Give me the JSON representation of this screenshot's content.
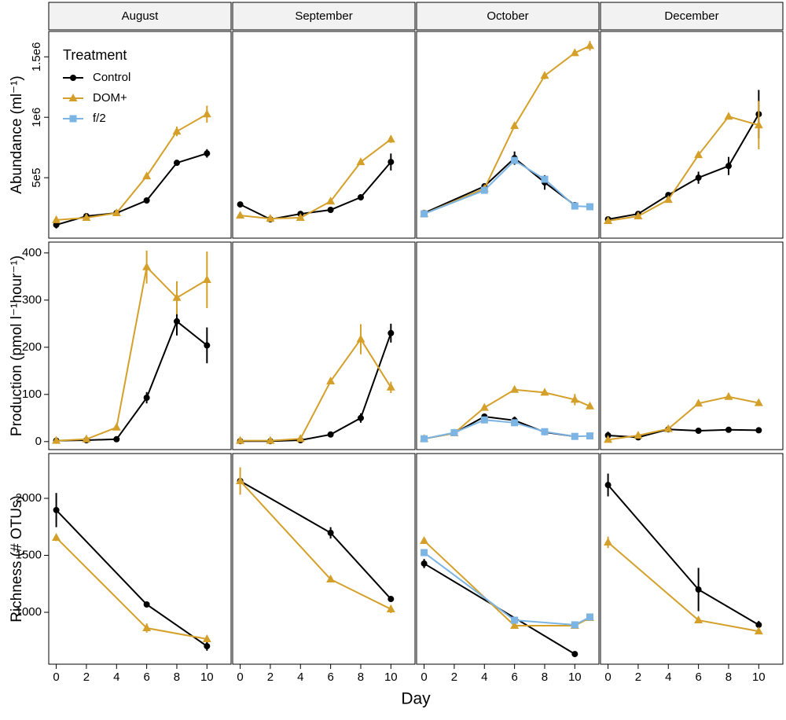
{
  "chart_data": {
    "type": "line",
    "xlabel": "Day",
    "columns": [
      "August",
      "September",
      "October",
      "December"
    ],
    "xlim": [
      -0.5,
      11.6
    ],
    "xticks": [
      0,
      2,
      4,
      6,
      8,
      10
    ],
    "legend": {
      "title": "Treatment",
      "position": "top-left"
    },
    "series": [
      {
        "name": "Control",
        "color": "#000000",
        "marker": "circle"
      },
      {
        "name": "DOM+",
        "color": "#D4A02A",
        "marker": "triangle"
      },
      {
        "name": "f/2",
        "color": "#7CB4E4",
        "marker": "square"
      }
    ],
    "rows": [
      {
        "ylabel": "Abundance (ml⁻¹)",
        "ylim": [
          0,
          1710000
        ],
        "ytick_label_angle": -90,
        "yticks": [
          {
            "value": 500000,
            "label": "5e5"
          },
          {
            "value": 1000000,
            "label": "1e6"
          },
          {
            "value": 1500000,
            "label": "1.5e6"
          }
        ],
        "panels": [
          {
            "series": [
              {
                "name": "Control",
                "x": [
                  0,
                  2,
                  4,
                  6,
                  8,
                  10
                ],
                "values": [
                  110000,
                  182000,
                  208000,
                  312000,
                  623000,
                  701000
                ],
                "errors": [
                  30000,
                  10000,
                  10000,
                  15000,
                  15000,
                  35000
                ]
              },
              {
                "name": "DOM+",
                "x": [
                  0,
                  2,
                  4,
                  6,
                  8,
                  10
                ],
                "values": [
                  150000,
                  169000,
                  208000,
                  513000,
                  883000,
                  1026000
                ],
                "errors": [
                  10000,
                  10000,
                  10000,
                  15000,
                  40000,
                  70000
                ]
              }
            ]
          },
          {
            "series": [
              {
                "name": "Control",
                "x": [
                  0,
                  2,
                  4,
                  6,
                  8,
                  10
                ],
                "values": [
                  279000,
                  156000,
                  201000,
                  234000,
                  338000,
                  630000
                ],
                "errors": [
                  10000,
                  10000,
                  10000,
                  10000,
                  25000,
                  70000
                ]
              },
              {
                "name": "DOM+",
                "x": [
                  0,
                  2,
                  4,
                  6,
                  8,
                  10
                ],
                "values": [
                  188000,
                  162000,
                  169000,
                  305000,
                  630000,
                  818000
                ],
                "errors": [
                  25000,
                  10000,
                  15000,
                  15000,
                  15000,
                  30000
                ]
              }
            ]
          },
          {
            "series": [
              {
                "name": "Control",
                "x": [
                  0,
                  4,
                  6,
                  8,
                  10
                ],
                "values": [
                  208000,
                  429000,
                  662000,
                  461000,
                  273000
                ],
                "errors": [
                  10000,
                  10000,
                  55000,
                  60000,
                  10000
                ]
              },
              {
                "name": "DOM+",
                "x": [
                  0,
                  4,
                  6,
                  8,
                  10,
                  11
                ],
                "values": [
                  201000,
                  409000,
                  929000,
                  1344000,
                  1532000,
                  1591000
                ],
                "errors": [
                  10000,
                  10000,
                  20000,
                  30000,
                  25000,
                  40000
                ]
              },
              {
                "name": "f/2",
                "x": [
                  0,
                  4,
                  6,
                  8,
                  10,
                  11
                ],
                "values": [
                  201000,
                  396000,
                  643000,
                  487000,
                  266000,
                  260000
                ],
                "errors": [
                  10000,
                  10000,
                  20000,
                  20000,
                  10000,
                  10000
                ]
              }
            ]
          },
          {
            "series": [
              {
                "name": "Control",
                "x": [
                  0,
                  2,
                  4,
                  6,
                  8,
                  10
                ],
                "values": [
                  156000,
                  201000,
                  357000,
                  500000,
                  597000,
                  1026000
                ],
                "errors": [
                  10000,
                  10000,
                  20000,
                  50000,
                  75000,
                  200000
                ]
              },
              {
                "name": "DOM+",
                "x": [
                  0,
                  2,
                  4,
                  6,
                  8,
                  10
                ],
                "values": [
                  143000,
                  182000,
                  318000,
                  688000,
                  1006000,
                  935000
                ],
                "errors": [
                  10000,
                  10000,
                  10000,
                  10000,
                  10000,
                  200000
                ]
              }
            ]
          }
        ]
      },
      {
        "ylabel": "Production (pmol l⁻¹hour⁻¹)",
        "ylim": [
          -17,
          423
        ],
        "yticks": [
          0,
          100,
          200,
          300,
          400
        ],
        "panels": [
          {
            "series": [
              {
                "name": "Control",
                "x": [
                  0,
                  2,
                  4,
                  6,
                  8,
                  10
                ],
                "values": [
                  2,
                  3,
                  5,
                  93,
                  255,
                  204
                ],
                "errors": [
                  1,
                  1,
                  1,
                  12,
                  30,
                  38
                ]
              },
              {
                "name": "DOM+",
                "x": [
                  0,
                  2,
                  4,
                  6,
                  8,
                  10
                ],
                "values": [
                  2,
                  5,
                  30,
                  370,
                  305,
                  343
                ],
                "errors": [
                  1,
                  1,
                  2,
                  35,
                  35,
                  60
                ]
              }
            ]
          },
          {
            "series": [
              {
                "name": "Control",
                "x": [
                  0,
                  2,
                  4,
                  6,
                  8,
                  10
                ],
                "values": [
                  1,
                  1,
                  3,
                  15,
                  50,
                  230
                ],
                "errors": [
                  1,
                  1,
                  1,
                  2,
                  10,
                  20
                ]
              },
              {
                "name": "DOM+",
                "x": [
                  0,
                  2,
                  4,
                  6,
                  8,
                  10
                ],
                "values": [
                  2,
                  2,
                  6,
                  128,
                  217,
                  115
                ],
                "errors": [
                  1,
                  1,
                  2,
                  5,
                  32,
                  12
                ]
              }
            ]
          },
          {
            "series": [
              {
                "name": "Control",
                "x": [
                  0,
                  2,
                  4,
                  6,
                  8,
                  10
                ],
                "values": [
                  6,
                  18,
                  53,
                  45,
                  20,
                  11
                ],
                "errors": [
                  2,
                  2,
                  5,
                  8,
                  3,
                  2
                ]
              },
              {
                "name": "DOM+",
                "x": [
                  0,
                  2,
                  4,
                  6,
                  8,
                  10,
                  11
                ],
                "values": [
                  6,
                  18,
                  72,
                  110,
                  104,
                  89,
                  75
                ],
                "errors": [
                  2,
                  2,
                  4,
                  5,
                  5,
                  12,
                  4
                ]
              },
              {
                "name": "f/2",
                "x": [
                  0,
                  2,
                  4,
                  6,
                  8,
                  10,
                  11
                ],
                "values": [
                  6,
                  19,
                  46,
                  40,
                  21,
                  11,
                  12
                ],
                "errors": [
                  2,
                  2,
                  3,
                  3,
                  3,
                  2,
                  2
                ]
              }
            ]
          },
          {
            "series": [
              {
                "name": "Control",
                "x": [
                  0,
                  2,
                  4,
                  6,
                  8,
                  10
                ],
                "values": [
                  13,
                  9,
                  26,
                  23,
                  25,
                  24
                ],
                "errors": [
                  8,
                  2,
                  3,
                  3,
                  4,
                  4
                ]
              },
              {
                "name": "DOM+",
                "x": [
                  0,
                  2,
                  4,
                  6,
                  8,
                  10
                ],
                "values": [
                  4,
                  13,
                  27,
                  81,
                  95,
                  82
                ],
                "errors": [
                  2,
                  3,
                  3,
                  6,
                  4,
                  4
                ]
              }
            ]
          }
        ]
      },
      {
        "ylabel": "Richness (# OTUs)",
        "ylim": [
          545,
          2393
        ],
        "yticks": [
          1000,
          1500,
          2000
        ],
        "panels": [
          {
            "series": [
              {
                "name": "Control",
                "x": [
                  0,
                  6,
                  10
                ],
                "values": [
                  1897,
                  1069,
                  703
                ],
                "errors": [
                  150,
                  15,
                  40
                ]
              },
              {
                "name": "DOM+",
                "x": [
                  0,
                  6,
                  10
                ],
                "values": [
                  1655,
                  862,
                  766
                ],
                "errors": [
                  30,
                  40,
                  20
                ]
              }
            ]
          },
          {
            "series": [
              {
                "name": "Control",
                "x": [
                  0,
                  6,
                  10
                ],
                "values": [
                  2152,
                  1697,
                  1117
                ],
                "errors": [
                  20,
                  50,
                  20
                ]
              },
              {
                "name": "DOM+",
                "x": [
                  0,
                  6,
                  10
                ],
                "values": [
                  2152,
                  1290,
                  1028
                ],
                "errors": [
                  120,
                  15,
                  35
                ]
              }
            ]
          },
          {
            "series": [
              {
                "name": "Control",
                "x": [
                  0,
                  10
                ],
                "values": [
                  1428,
                  634
                ],
                "errors": [
                  40,
                  25
                ]
              },
              {
                "name": "DOM+",
                "x": [
                  0,
                  6,
                  10,
                  11
                ],
                "values": [
                  1628,
                  883,
                  883,
                  952
                ],
                "errors": [
                  15,
                  15,
                  15,
                  15
                ]
              },
              {
                "name": "f/2",
                "x": [
                  0,
                  6,
                  10,
                  11
                ],
                "values": [
                  1524,
                  931,
                  890,
                  959
                ],
                "errors": [
                  15,
                  25,
                  15,
                  15
                ]
              }
            ]
          },
          {
            "series": [
              {
                "name": "Control",
                "x": [
                  0,
                  6,
                  10
                ],
                "values": [
                  2117,
                  1200,
                  890
                ],
                "errors": [
                  100,
                  190,
                  35
                ]
              },
              {
                "name": "DOM+",
                "x": [
                  0,
                  6,
                  10
                ],
                "values": [
                  1614,
                  931,
                  834
                ],
                "errors": [
                  50,
                  15,
                  15
                ]
              }
            ]
          }
        ]
      }
    ]
  }
}
